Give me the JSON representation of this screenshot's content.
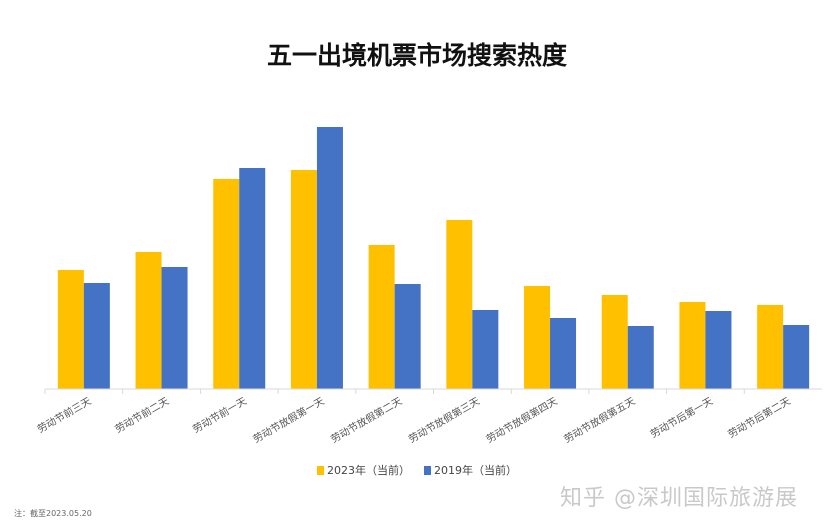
{
  "chart_data": {
    "type": "bar",
    "title": "五一出境机票市场搜索热度",
    "categories": [
      "劳动节前三天",
      "劳动节前二天",
      "劳动节前一天",
      "劳动节放假第一天",
      "劳动节放假第二天",
      "劳动节放假第三天",
      "劳动节放假第四天",
      "劳动节放假第五天",
      "劳动节后第一天",
      "劳动节后第二天"
    ],
    "series": [
      {
        "name": "2023年（当前）",
        "color": "#FFC000",
        "values": [
          119,
          137,
          210,
          219,
          144,
          169,
          103,
          94,
          87,
          84
        ]
      },
      {
        "name": "2019年（当前）",
        "color": "#4472C4",
        "values": [
          106,
          122,
          221,
          262,
          105,
          79,
          71,
          63,
          78,
          64
        ]
      }
    ],
    "xlabel": "",
    "ylabel": "",
    "ylim": [
      0,
      270
    ],
    "y_axis_shown": false,
    "grid": false,
    "legend_position": "bottom"
  },
  "note": "注：截至2023.05.20",
  "watermark": "知乎 @深圳国际旅游展"
}
